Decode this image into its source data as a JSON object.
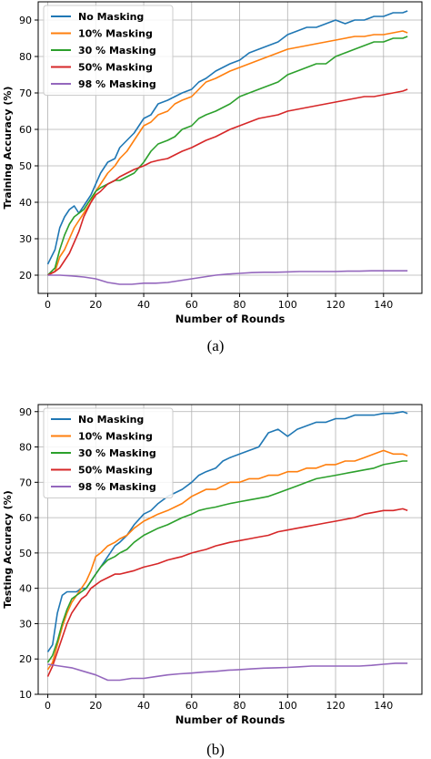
{
  "captions": [
    "(a)",
    "(b)"
  ],
  "chart_data": [
    {
      "type": "line",
      "xlabel": "Number of Rounds",
      "ylabel": "Training Accuracy (%)",
      "xlim": [
        -4,
        156
      ],
      "ylim": [
        15,
        95
      ],
      "xticks": [
        0,
        20,
        40,
        60,
        80,
        100,
        120,
        140
      ],
      "yticks": [
        20,
        30,
        40,
        50,
        60,
        70,
        80,
        90
      ],
      "grid": true,
      "legend_position": "top-left",
      "series": [
        {
          "name": "No Masking",
          "color": "#1f77b4",
          "x": [
            0,
            3,
            5,
            7,
            9,
            11,
            13,
            15,
            18,
            20,
            22,
            25,
            28,
            30,
            33,
            36,
            40,
            43,
            46,
            50,
            53,
            56,
            60,
            63,
            66,
            70,
            73,
            76,
            80,
            84,
            88,
            92,
            96,
            100,
            104,
            108,
            112,
            116,
            120,
            124,
            128,
            132,
            136,
            140,
            144,
            148,
            150
          ],
          "y": [
            23,
            27,
            33,
            36,
            38,
            39,
            37,
            39,
            42,
            45,
            48,
            51,
            52,
            55,
            57,
            59,
            63,
            64,
            67,
            68,
            69,
            70,
            71,
            73,
            74,
            76,
            77,
            78,
            79,
            81,
            82,
            83,
            84,
            86,
            87,
            88,
            88,
            89,
            90,
            89,
            90,
            90,
            91,
            91,
            92,
            92,
            92.5
          ]
        },
        {
          "name": "10% Masking",
          "color": "#ff7f0e",
          "x": [
            0,
            3,
            5,
            7,
            9,
            11,
            13,
            15,
            18,
            20,
            22,
            25,
            28,
            30,
            33,
            36,
            40,
            43,
            46,
            50,
            53,
            56,
            60,
            63,
            66,
            70,
            73,
            76,
            80,
            84,
            88,
            92,
            96,
            100,
            104,
            108,
            112,
            116,
            120,
            124,
            128,
            132,
            136,
            140,
            144,
            148,
            150
          ],
          "y": [
            20,
            21,
            25,
            27,
            30,
            33,
            35,
            37,
            40,
            43,
            45,
            48,
            50,
            52,
            54,
            57,
            61,
            62,
            64,
            65,
            67,
            68,
            69,
            71,
            73,
            74,
            75,
            76,
            77,
            78,
            79,
            80,
            81,
            82,
            82.5,
            83,
            83.5,
            84,
            84.5,
            85,
            85.5,
            85.5,
            86,
            86,
            86.5,
            87,
            86.5
          ]
        },
        {
          "name": "30 % Masking",
          "color": "#2ca02c",
          "x": [
            0,
            3,
            5,
            7,
            9,
            11,
            13,
            15,
            18,
            20,
            22,
            25,
            28,
            30,
            33,
            36,
            40,
            43,
            46,
            50,
            53,
            56,
            60,
            63,
            66,
            70,
            73,
            76,
            80,
            84,
            88,
            92,
            96,
            100,
            104,
            108,
            112,
            116,
            120,
            124,
            128,
            132,
            136,
            140,
            144,
            148,
            150
          ],
          "y": [
            20,
            22,
            27,
            31,
            34,
            36,
            37,
            38,
            41,
            43,
            44,
            45,
            46,
            46,
            47,
            48,
            51,
            54,
            56,
            57,
            58,
            60,
            61,
            63,
            64,
            65,
            66,
            67,
            69,
            70,
            71,
            72,
            73,
            75,
            76,
            77,
            78,
            78,
            80,
            81,
            82,
            83,
            84,
            84,
            85,
            85,
            85.5
          ]
        },
        {
          "name": "50% Masking",
          "color": "#d62728",
          "x": [
            0,
            3,
            5,
            7,
            9,
            11,
            13,
            15,
            18,
            20,
            22,
            25,
            28,
            30,
            33,
            36,
            40,
            43,
            46,
            50,
            53,
            56,
            60,
            63,
            66,
            70,
            73,
            76,
            80,
            84,
            88,
            92,
            96,
            100,
            104,
            108,
            112,
            116,
            120,
            124,
            128,
            132,
            136,
            140,
            144,
            148,
            150
          ],
          "y": [
            20,
            21,
            22,
            24,
            26,
            29,
            32,
            36,
            40,
            42,
            43,
            45,
            46,
            47,
            48,
            49,
            50,
            51,
            51.5,
            52,
            53,
            54,
            55,
            56,
            57,
            58,
            59,
            60,
            61,
            62,
            63,
            63.5,
            64,
            65,
            65.5,
            66,
            66.5,
            67,
            67.5,
            68,
            68.5,
            69,
            69,
            69.5,
            70,
            70.5,
            71
          ]
        },
        {
          "name": "98 % Masking",
          "color": "#9467bd",
          "x": [
            0,
            5,
            10,
            15,
            20,
            25,
            30,
            35,
            40,
            45,
            50,
            55,
            60,
            65,
            70,
            75,
            80,
            85,
            90,
            95,
            100,
            105,
            110,
            115,
            120,
            125,
            130,
            135,
            140,
            145,
            150
          ],
          "y": [
            20,
            20,
            19.8,
            19.5,
            19,
            18,
            17.5,
            17.5,
            17.8,
            17.8,
            18,
            18.5,
            19,
            19.5,
            20,
            20.3,
            20.5,
            20.7,
            20.8,
            20.8,
            20.9,
            21,
            21,
            21,
            21,
            21.1,
            21.1,
            21.2,
            21.2,
            21.2,
            21.2
          ]
        }
      ]
    },
    {
      "type": "line",
      "xlabel": "Number of Rounds",
      "ylabel": "Testing Accuracy (%)",
      "xlim": [
        -4,
        156
      ],
      "ylim": [
        10,
        92
      ],
      "xticks": [
        0,
        20,
        40,
        60,
        80,
        100,
        120,
        140
      ],
      "yticks": [
        10,
        20,
        30,
        40,
        50,
        60,
        70,
        80,
        90
      ],
      "grid": true,
      "legend_position": "top-left",
      "series": [
        {
          "name": "No Masking",
          "color": "#1f77b4",
          "x": [
            0,
            2,
            4,
            6,
            8,
            10,
            12,
            14,
            16,
            18,
            20,
            22,
            25,
            28,
            30,
            33,
            36,
            40,
            43,
            46,
            50,
            53,
            56,
            60,
            63,
            66,
            70,
            73,
            76,
            80,
            84,
            88,
            92,
            96,
            100,
            104,
            108,
            112,
            116,
            120,
            124,
            128,
            132,
            136,
            140,
            144,
            148,
            150
          ],
          "y": [
            22,
            24,
            33,
            38,
            39,
            39,
            39,
            40,
            40,
            42,
            44,
            46,
            49,
            52,
            53,
            55,
            58,
            61,
            62,
            64,
            66,
            67,
            68,
            70,
            72,
            73,
            74,
            76,
            77,
            78,
            79,
            80,
            84,
            85,
            83,
            85,
            86,
            87,
            87,
            88,
            88,
            89,
            89,
            89,
            89.5,
            89.5,
            90,
            89.5
          ]
        },
        {
          "name": "10% Masking",
          "color": "#ff7f0e",
          "x": [
            0,
            2,
            4,
            6,
            8,
            10,
            12,
            14,
            16,
            18,
            20,
            22,
            25,
            28,
            30,
            33,
            36,
            40,
            43,
            46,
            50,
            53,
            56,
            60,
            63,
            66,
            70,
            73,
            76,
            80,
            84,
            88,
            92,
            96,
            100,
            104,
            108,
            112,
            116,
            120,
            124,
            128,
            132,
            136,
            140,
            144,
            148,
            150
          ],
          "y": [
            17,
            19,
            24,
            29,
            33,
            36,
            38,
            40,
            42,
            45,
            49,
            50,
            52,
            53,
            54,
            55,
            57,
            59,
            60,
            61,
            62,
            63,
            64,
            66,
            67,
            68,
            68,
            69,
            70,
            70,
            71,
            71,
            72,
            72,
            73,
            73,
            74,
            74,
            75,
            75,
            76,
            76,
            77,
            78,
            79,
            78,
            78,
            77.5
          ]
        },
        {
          "name": "30 % Masking",
          "color": "#2ca02c",
          "x": [
            0,
            2,
            4,
            6,
            8,
            10,
            12,
            14,
            16,
            18,
            20,
            22,
            25,
            28,
            30,
            33,
            36,
            40,
            43,
            46,
            50,
            53,
            56,
            60,
            63,
            66,
            70,
            73,
            76,
            80,
            84,
            88,
            92,
            96,
            100,
            104,
            108,
            112,
            116,
            120,
            124,
            128,
            132,
            136,
            140,
            144,
            148,
            150
          ],
          "y": [
            19,
            21,
            25,
            30,
            34,
            37,
            38,
            39,
            40,
            42,
            44,
            46,
            48,
            49,
            50,
            51,
            53,
            55,
            56,
            57,
            58,
            59,
            60,
            61,
            62,
            62.5,
            63,
            63.5,
            64,
            64.5,
            65,
            65.5,
            66,
            67,
            68,
            69,
            70,
            71,
            71.5,
            72,
            72.5,
            73,
            73.5,
            74,
            75,
            75.5,
            76,
            76
          ]
        },
        {
          "name": "50% Masking",
          "color": "#d62728",
          "x": [
            0,
            2,
            4,
            6,
            8,
            10,
            12,
            14,
            16,
            18,
            20,
            22,
            25,
            28,
            30,
            33,
            36,
            40,
            43,
            46,
            50,
            53,
            56,
            60,
            63,
            66,
            70,
            73,
            76,
            80,
            84,
            88,
            92,
            96,
            100,
            104,
            108,
            112,
            116,
            120,
            124,
            128,
            132,
            136,
            140,
            144,
            148,
            150
          ],
          "y": [
            15,
            18,
            22,
            26,
            30,
            33,
            35,
            37,
            38,
            40,
            41,
            42,
            43,
            44,
            44,
            44.5,
            45,
            46,
            46.5,
            47,
            48,
            48.5,
            49,
            50,
            50.5,
            51,
            52,
            52.5,
            53,
            53.5,
            54,
            54.5,
            55,
            56,
            56.5,
            57,
            57.5,
            58,
            58.5,
            59,
            59.5,
            60,
            61,
            61.5,
            62,
            62,
            62.5,
            62
          ]
        },
        {
          "name": "98 % Masking",
          "color": "#9467bd",
          "x": [
            0,
            5,
            10,
            15,
            20,
            25,
            30,
            35,
            40,
            45,
            50,
            55,
            60,
            65,
            70,
            75,
            80,
            85,
            90,
            95,
            100,
            105,
            110,
            115,
            120,
            125,
            130,
            135,
            140,
            145,
            150
          ],
          "y": [
            18.5,
            18,
            17.5,
            16.5,
            15.5,
            14,
            14,
            14.5,
            14.5,
            15,
            15.5,
            15.8,
            16,
            16.3,
            16.5,
            16.8,
            17,
            17.2,
            17.4,
            17.5,
            17.6,
            17.8,
            18,
            18,
            18,
            18,
            18,
            18.2,
            18.5,
            18.8,
            18.8
          ]
        }
      ]
    }
  ]
}
